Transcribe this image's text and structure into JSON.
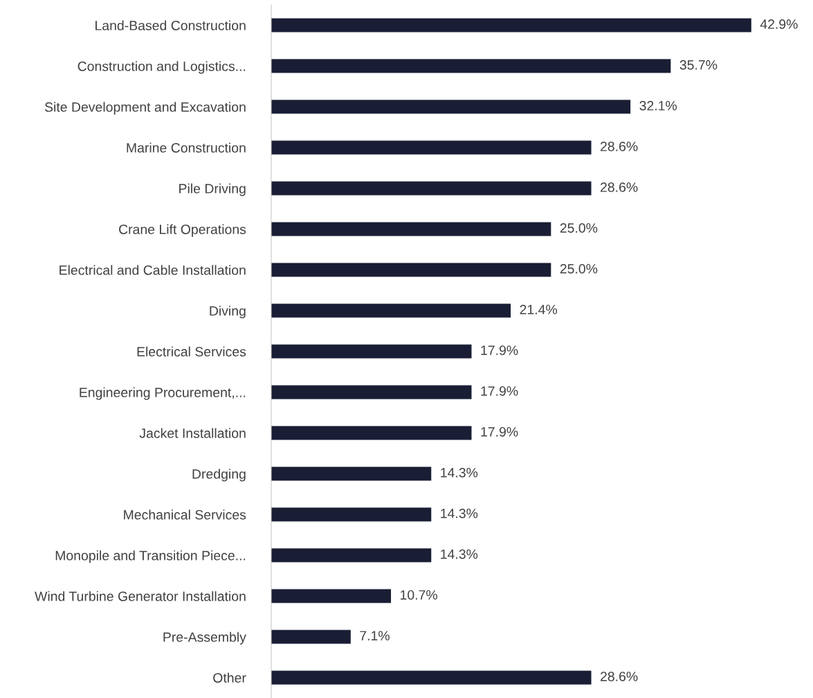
{
  "chart_data": {
    "type": "bar",
    "orientation": "horizontal",
    "categories": [
      "Land-Based Construction",
      "Construction and Logistics...",
      "Site Development and Excavation",
      "Marine Construction",
      "Pile Driving",
      "Crane Lift Operations",
      "Electrical and Cable Installation",
      "Diving",
      "Electrical Services",
      "Engineering Procurement,...",
      "Jacket Installation",
      "Dredging",
      "Mechanical Services",
      "Monopile and Transition Piece...",
      "Wind Turbine Generator Installation",
      "Pre-Assembly",
      "Other"
    ],
    "values": [
      42.9,
      35.7,
      32.1,
      28.6,
      28.6,
      25.0,
      25.0,
      21.4,
      17.9,
      17.9,
      17.9,
      14.3,
      14.3,
      14.3,
      10.7,
      7.1,
      28.6
    ],
    "value_labels": [
      "42.9%",
      "35.7%",
      "32.1%",
      "28.6%",
      "28.6%",
      "25.0%",
      "25.0%",
      "21.4%",
      "17.9%",
      "17.9%",
      "17.9%",
      "14.3%",
      "14.3%",
      "14.3%",
      "10.7%",
      "7.1%",
      "28.6%"
    ],
    "color": "#1a1e35",
    "grid": false,
    "legend": false
  }
}
